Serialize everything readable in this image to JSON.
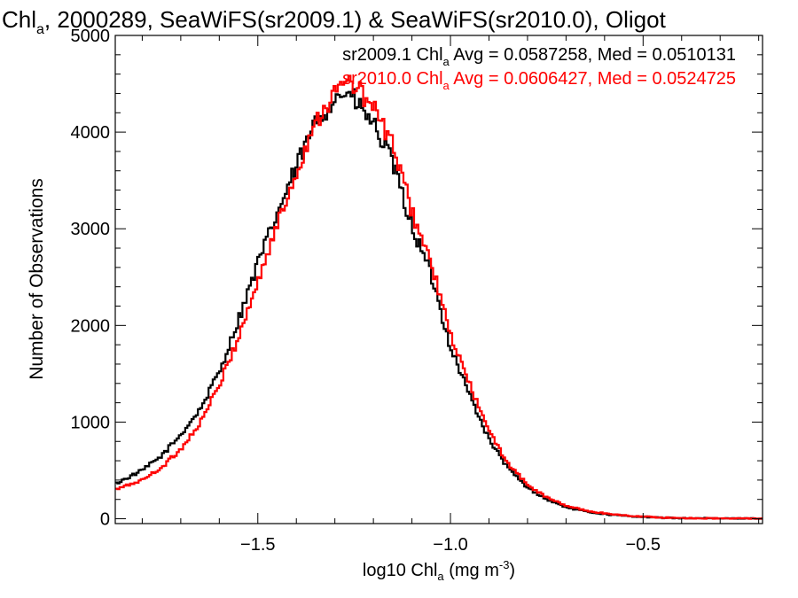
{
  "chart_data": {
    "type": "line",
    "title": {
      "prefix": "Chl",
      "sub": "a",
      "rest": ", 2000289, SeaWiFS(sr2009.1) & SeaWiFS(sr2010.0), Oligot"
    },
    "xlabel": {
      "prefix": "log10 Chl",
      "sub": "a",
      "rest": " (mg m",
      "sup": "-3",
      "end": ")"
    },
    "ylabel": "Number of Observations",
    "xlim": [
      -1.87,
      -0.19
    ],
    "ylim": [
      -50,
      5000
    ],
    "x_ticks": [
      {
        "value": -1.5,
        "label": "−1.5"
      },
      {
        "value": -1.0,
        "label": "−1.0"
      },
      {
        "value": -0.5,
        "label": "−0.5"
      }
    ],
    "y_ticks": [
      {
        "value": 0,
        "label": "0"
      },
      {
        "value": 1000,
        "label": "1000"
      },
      {
        "value": 2000,
        "label": "2000"
      },
      {
        "value": 3000,
        "label": "3000"
      },
      {
        "value": 4000,
        "label": "4000"
      },
      {
        "value": 5000,
        "label": "5000"
      }
    ],
    "grid": false,
    "legend_placement": "top-right",
    "series": [
      {
        "name": "sr2009.1",
        "color": "#000000",
        "stats_prefix": "sr2009.1 Chl",
        "stats_sub": "a",
        "stats_rest": " Avg = 0.0587258, Med = 0.0510131",
        "points": [
          [
            -1.87,
            360
          ],
          [
            -1.8,
            500
          ],
          [
            -1.75,
            650
          ],
          [
            -1.7,
            870
          ],
          [
            -1.65,
            1130
          ],
          [
            -1.6,
            1520
          ],
          [
            -1.55,
            2060
          ],
          [
            -1.5,
            2640
          ],
          [
            -1.45,
            3150
          ],
          [
            -1.4,
            3640
          ],
          [
            -1.35,
            4100
          ],
          [
            -1.3,
            4350
          ],
          [
            -1.27,
            4420
          ],
          [
            -1.25,
            4330
          ],
          [
            -1.2,
            4080
          ],
          [
            -1.15,
            3680
          ],
          [
            -1.1,
            3020
          ],
          [
            -1.05,
            2520
          ],
          [
            -1.0,
            1780
          ],
          [
            -0.95,
            1280
          ],
          [
            -0.9,
            820
          ],
          [
            -0.85,
            520
          ],
          [
            -0.8,
            320
          ],
          [
            -0.75,
            200
          ],
          [
            -0.7,
            120
          ],
          [
            -0.65,
            75
          ],
          [
            -0.6,
            48
          ],
          [
            -0.55,
            30
          ],
          [
            -0.5,
            20
          ],
          [
            -0.45,
            10
          ],
          [
            -0.4,
            6
          ],
          [
            -0.3,
            3
          ],
          [
            -0.19,
            2
          ]
        ]
      },
      {
        "name": "sr2010.0",
        "color": "#ff0000",
        "stats_prefix": "sr2010.0 Chl",
        "stats_sub": "a",
        "stats_rest": " Avg = 0.0606427, Med = 0.0524725",
        "points": [
          [
            -1.87,
            300
          ],
          [
            -1.8,
            400
          ],
          [
            -1.75,
            530
          ],
          [
            -1.7,
            720
          ],
          [
            -1.65,
            990
          ],
          [
            -1.6,
            1380
          ],
          [
            -1.55,
            1880
          ],
          [
            -1.5,
            2450
          ],
          [
            -1.45,
            3030
          ],
          [
            -1.4,
            3580
          ],
          [
            -1.35,
            4120
          ],
          [
            -1.3,
            4400
          ],
          [
            -1.27,
            4530
          ],
          [
            -1.25,
            4490
          ],
          [
            -1.2,
            4250
          ],
          [
            -1.15,
            3870
          ],
          [
            -1.1,
            3180
          ],
          [
            -1.05,
            2640
          ],
          [
            -1.0,
            1900
          ],
          [
            -0.95,
            1390
          ],
          [
            -0.9,
            900
          ],
          [
            -0.85,
            570
          ],
          [
            -0.8,
            350
          ],
          [
            -0.75,
            220
          ],
          [
            -0.7,
            135
          ],
          [
            -0.65,
            85
          ],
          [
            -0.6,
            55
          ],
          [
            -0.55,
            35
          ],
          [
            -0.5,
            22
          ],
          [
            -0.45,
            12
          ],
          [
            -0.4,
            7
          ],
          [
            -0.3,
            3
          ],
          [
            -0.19,
            2
          ]
        ]
      }
    ]
  }
}
